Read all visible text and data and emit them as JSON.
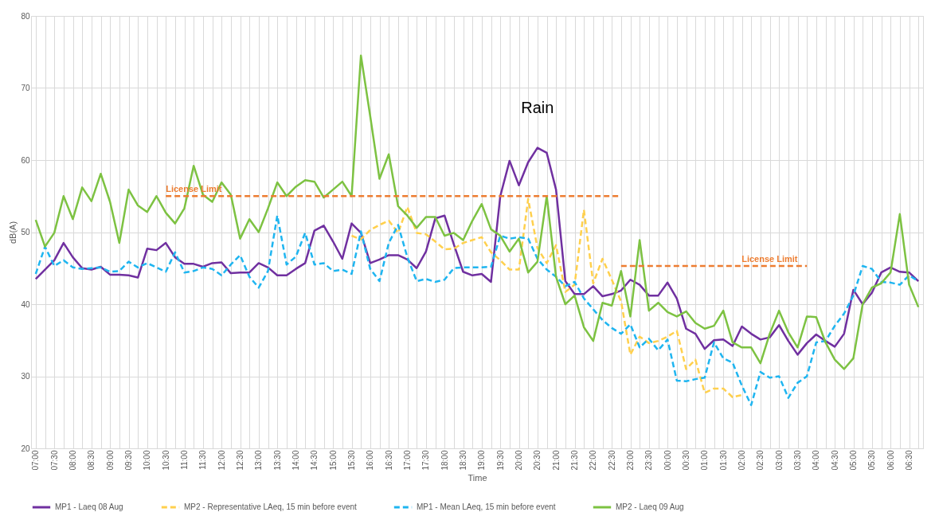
{
  "chart_data": {
    "type": "line",
    "xlabel": "Time",
    "ylabel": "dB(A)",
    "categories": [
      "07:00",
      null,
      "07:30",
      null,
      "08:00",
      null,
      "08:30",
      null,
      "09:00",
      null,
      "09:30",
      null,
      "10:00",
      null,
      "10:30",
      null,
      "11:00",
      null,
      "11:30",
      null,
      "12:00",
      null,
      "12:30",
      null,
      "13:00",
      null,
      "13:30",
      null,
      "14:00",
      null,
      "14:30",
      null,
      "15:00",
      null,
      "15:30",
      null,
      "16:00",
      null,
      "16:30",
      null,
      "17:00",
      null,
      "17:30",
      null,
      "18:00",
      null,
      "18:30",
      null,
      "19:00",
      null,
      "19:30",
      null,
      "20:00",
      null,
      "20:30",
      null,
      "21:00",
      null,
      "21:30",
      null,
      "22:00",
      null,
      "22:30",
      null,
      "23:00",
      null,
      "23:30",
      null,
      "00:00",
      null,
      "00:30",
      null,
      "01:00",
      null,
      "01:30",
      null,
      "02:00",
      null,
      "02:30",
      null,
      "03:00",
      null,
      "03:30",
      null,
      "04:00",
      null,
      "04:30",
      null,
      "05:00",
      null,
      "05:30",
      null,
      "06:00",
      null,
      "06:30",
      null
    ],
    "ylim": [
      20,
      80
    ],
    "yticks": [
      20,
      30,
      40,
      50,
      60,
      70,
      80
    ],
    "grid": true,
    "legend": "bottom",
    "series": [
      {
        "name": "MP1 - Laeq 08 Aug",
        "color": "#7030a0",
        "line_style": "solid",
        "values": [
          43.5,
          44.8,
          46.1,
          48.5,
          46.5,
          45.0,
          44.8,
          45.2,
          44.1,
          44.1,
          44.0,
          43.7,
          47.7,
          47.5,
          48.5,
          46.5,
          45.6,
          45.6,
          45.2,
          45.7,
          45.8,
          44.3,
          44.4,
          44.4,
          45.7,
          45.1,
          44.0,
          44.0,
          44.9,
          45.7,
          50.2,
          50.9,
          48.7,
          46.3,
          51.2,
          49.9,
          45.7,
          46.2,
          46.8,
          46.8,
          46.2,
          45.0,
          47.3,
          51.9,
          52.3,
          48.3,
          44.5,
          44.0,
          44.2,
          43.1,
          55.0,
          59.9,
          56.5,
          59.7,
          61.7,
          61.0,
          55.9,
          43.2,
          41.4,
          41.4,
          42.5,
          41.1,
          41.4,
          41.9,
          43.4,
          42.7,
          41.2,
          41.2,
          43.0,
          40.8,
          36.6,
          35.9,
          33.8,
          35.0,
          35.1,
          34.2,
          36.9,
          35.9,
          35.1,
          35.4,
          37.1,
          34.9,
          33.0,
          34.6,
          35.8,
          34.9,
          34.1,
          35.9,
          42.0,
          40.0,
          41.6,
          44.4,
          45.1,
          44.5,
          44.4,
          43.2
        ]
      },
      {
        "name": "MP2 - Representative LAeq, 15 min before event",
        "color": "#ffd04d",
        "line_style": "dashed",
        "values": [
          null,
          null,
          null,
          null,
          null,
          null,
          null,
          null,
          null,
          null,
          null,
          null,
          null,
          null,
          null,
          null,
          null,
          null,
          null,
          null,
          null,
          null,
          null,
          null,
          null,
          null,
          null,
          null,
          null,
          null,
          null,
          null,
          null,
          null,
          49.5,
          49.0,
          50.3,
          51.0,
          51.6,
          49.9,
          53.5,
          49.9,
          49.7,
          48.7,
          47.6,
          47.7,
          48.5,
          48.9,
          49.3,
          47.2,
          46.1,
          44.8,
          44.8,
          54.6,
          47.8,
          45.7,
          48.2,
          41.7,
          42.7,
          53.1,
          42.9,
          46.3,
          43.4,
          40.4,
          33.0,
          35.5,
          34.6,
          34.9,
          35.5,
          36.3,
          31.0,
          32.3,
          27.7,
          28.3,
          28.3,
          27.1,
          27.4,
          null,
          null,
          null,
          null,
          null,
          null,
          null,
          null,
          null,
          null,
          null,
          null,
          null,
          null,
          null,
          null,
          null,
          null,
          null
        ]
      },
      {
        "name": "MP1 - Mean LAeq, 15 min before event",
        "color": "#1fb5f0",
        "line_style": "dashed",
        "values": [
          44.2,
          48.0,
          45.3,
          46.1,
          45.1,
          44.9,
          45.0,
          45.1,
          44.5,
          44.6,
          45.9,
          45.1,
          45.7,
          45.1,
          44.5,
          47.2,
          44.4,
          44.6,
          45.1,
          44.9,
          44.0,
          45.5,
          46.8,
          43.8,
          42.3,
          44.6,
          52.3,
          45.5,
          46.6,
          49.9,
          45.5,
          45.7,
          44.6,
          44.8,
          44.2,
          50.1,
          44.9,
          43.2,
          48.5,
          51.0,
          46.5,
          43.2,
          43.5,
          43.1,
          43.4,
          45.0,
          45.1,
          45.1,
          45.1,
          45.2,
          49.5,
          49.1,
          49.3,
          49.1,
          46.3,
          44.8,
          43.8,
          42.5,
          43.1,
          40.8,
          39.3,
          37.8,
          36.7,
          35.9,
          37.2,
          34.0,
          35.2,
          33.6,
          35.1,
          29.4,
          29.3,
          29.6,
          29.8,
          34.7,
          32.5,
          31.9,
          28.7,
          26.0,
          30.6,
          29.8,
          30.0,
          27.0,
          29.1,
          30.0,
          34.7,
          34.9,
          37.0,
          38.7,
          41.2,
          45.3,
          44.9,
          43.1,
          43.0,
          42.7,
          44.0,
          43.2
        ]
      },
      {
        "name": "MP2 - Laeq 09 Aug",
        "color": "#7dc242",
        "line_style": "solid",
        "values": [
          51.7,
          48.0,
          49.9,
          55.0,
          51.8,
          56.2,
          54.3,
          58.1,
          54.2,
          48.5,
          55.9,
          53.7,
          52.8,
          55.0,
          52.7,
          51.2,
          53.3,
          59.2,
          55.2,
          54.2,
          56.9,
          55.2,
          49.1,
          51.8,
          50.0,
          53.3,
          56.9,
          55.0,
          56.3,
          57.2,
          57.0,
          54.8,
          55.9,
          57.0,
          55.0,
          74.5,
          66.1,
          57.4,
          60.8,
          53.6,
          52.3,
          50.6,
          52.1,
          52.1,
          49.5,
          49.9,
          48.9,
          51.6,
          53.9,
          50.4,
          49.5,
          47.3,
          49.1,
          44.4,
          45.9,
          55.0,
          43.8,
          40.0,
          41.2,
          36.8,
          34.9,
          40.2,
          39.8,
          44.6,
          38.3,
          48.9,
          39.1,
          40.2,
          38.9,
          38.3,
          39.0,
          37.4,
          36.6,
          37.0,
          39.1,
          34.7,
          34.0,
          34.0,
          31.8,
          35.9,
          39.1,
          36.1,
          34.0,
          38.3,
          38.2,
          34.7,
          32.3,
          31.0,
          32.5,
          40.0,
          42.3,
          42.9,
          44.4,
          52.5,
          42.7,
          39.6
        ]
      },
      {
        "color": "#ed7d31",
        "line_style": "dashed",
        "values": [
          null,
          null,
          null,
          null,
          null,
          null,
          null,
          null,
          null,
          null,
          null,
          null,
          null,
          null,
          55,
          55,
          55,
          55,
          55,
          55,
          55,
          55,
          55,
          55,
          55,
          55,
          55,
          55,
          55,
          55,
          55,
          55,
          55,
          55,
          55,
          55,
          55,
          55,
          55,
          55,
          55,
          55,
          55,
          55,
          55,
          55,
          55,
          55,
          55,
          55,
          55,
          55,
          55,
          55,
          55,
          55,
          55,
          55,
          55,
          55,
          55,
          55,
          55,
          55,
          null,
          null,
          null,
          null,
          null,
          null,
          null,
          null,
          null,
          null,
          null,
          null,
          null,
          null,
          null,
          null,
          null,
          null,
          null,
          null,
          null,
          null,
          null,
          null,
          null,
          null,
          null,
          null,
          null,
          null,
          null,
          null
        ]
      },
      {
        "color": "#ed7d31",
        "line_style": "dashed",
        "values": [
          null,
          null,
          null,
          null,
          null,
          null,
          null,
          null,
          null,
          null,
          null,
          null,
          null,
          null,
          null,
          null,
          null,
          null,
          null,
          null,
          null,
          null,
          null,
          null,
          null,
          null,
          null,
          null,
          null,
          null,
          null,
          null,
          null,
          null,
          null,
          null,
          null,
          null,
          null,
          null,
          null,
          null,
          null,
          null,
          null,
          null,
          null,
          null,
          null,
          null,
          null,
          null,
          null,
          null,
          null,
          null,
          null,
          null,
          null,
          null,
          null,
          null,
          null,
          45.3,
          45.3,
          45.3,
          45.3,
          45.3,
          45.3,
          45.3,
          45.3,
          45.3,
          45.3,
          45.3,
          45.3,
          45.3,
          45.3,
          45.3,
          45.3,
          45.3,
          45.3,
          45.3,
          45.3,
          45.3,
          null,
          null,
          null,
          null,
          null,
          null,
          null,
          null,
          null,
          null,
          null,
          null
        ]
      }
    ],
    "annotations": [
      {
        "text": "License Limit",
        "x": "10:30",
        "y": 55
      },
      {
        "text": "License Limit",
        "x": "03:30",
        "y": 45.3
      },
      "Rain"
    ]
  }
}
